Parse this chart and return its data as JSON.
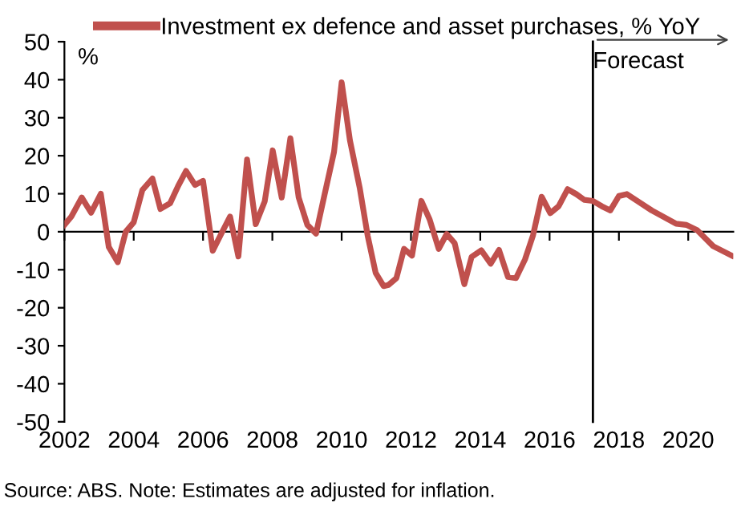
{
  "chart_data": {
    "type": "line",
    "ylabel": "%",
    "legend": "top",
    "series": [
      {
        "name": "Investment ex defence and asset purchases, % YoY",
        "color": "#c0504d",
        "x": [
          2002.0,
          2002.2,
          2002.5,
          2002.77,
          2003.05,
          2003.28,
          2003.54,
          2003.77,
          2004.0,
          2004.25,
          2004.54,
          2004.77,
          2005.05,
          2005.28,
          2005.51,
          2005.77,
          2006.0,
          2006.28,
          2006.5,
          2006.78,
          2007.02,
          2007.27,
          2007.52,
          2007.78,
          2008.01,
          2008.27,
          2008.52,
          2008.76,
          2009.01,
          2009.26,
          2009.5,
          2009.78,
          2010.0,
          2010.24,
          2010.52,
          2010.75,
          2010.98,
          2011.21,
          2011.35,
          2011.58,
          2011.8,
          2012.03,
          2012.3,
          2012.54,
          2012.8,
          2013.03,
          2013.26,
          2013.54,
          2013.75,
          2014.03,
          2014.3,
          2014.54,
          2014.8,
          2015.03,
          2015.29,
          2015.52,
          2015.77,
          2016.02,
          2016.26,
          2016.52,
          2016.77,
          2017.0,
          2017.25,
          2017.51,
          2017.75,
          2018.0,
          2018.23,
          2018.95,
          2019.65,
          2019.95,
          2020.26,
          2020.72,
          2021.26
        ],
        "values": [
          1.8,
          4,
          9,
          5,
          10,
          -4,
          -8,
          0,
          2.5,
          11,
          14,
          6,
          7.5,
          12,
          16,
          12.3,
          13.4,
          -5,
          -1,
          4,
          -6.5,
          19,
          2,
          8,
          21.4,
          9,
          24.6,
          9,
          1.8,
          -0.5,
          9.5,
          21,
          39.3,
          24,
          11.6,
          -1,
          -10.8,
          -14.3,
          -14,
          -12.2,
          -4.5,
          -6.3,
          8.1,
          3.2,
          -4.5,
          -0.6,
          -3,
          -13.8,
          -6.6,
          -4.9,
          -8.4,
          -4.8,
          -11.9,
          -12.2,
          -7.3,
          -1,
          9.2,
          4.9,
          6.7,
          11.2,
          9.9,
          8.4,
          8.1,
          6.7,
          5.6,
          9.4,
          9.9,
          5.6,
          2.1,
          1.8,
          0.4,
          -3.8,
          -6.3
        ]
      }
    ],
    "xlim": [
      2002,
      2021.3
    ],
    "xticks": [
      2002,
      2004,
      2006,
      2008,
      2010,
      2012,
      2014,
      2016,
      2018,
      2020
    ],
    "ylim": [
      -50,
      50
    ],
    "yticks": [
      -50,
      -40,
      -30,
      -20,
      -10,
      0,
      10,
      20,
      30,
      40,
      50
    ],
    "ref_lines": [
      {
        "axis": "x",
        "value": 2017.25,
        "label": "Forecast",
        "color": "#000000"
      }
    ],
    "annotations": [
      "Source: ABS. Note: Estimates are adjusted for inflation."
    ]
  }
}
